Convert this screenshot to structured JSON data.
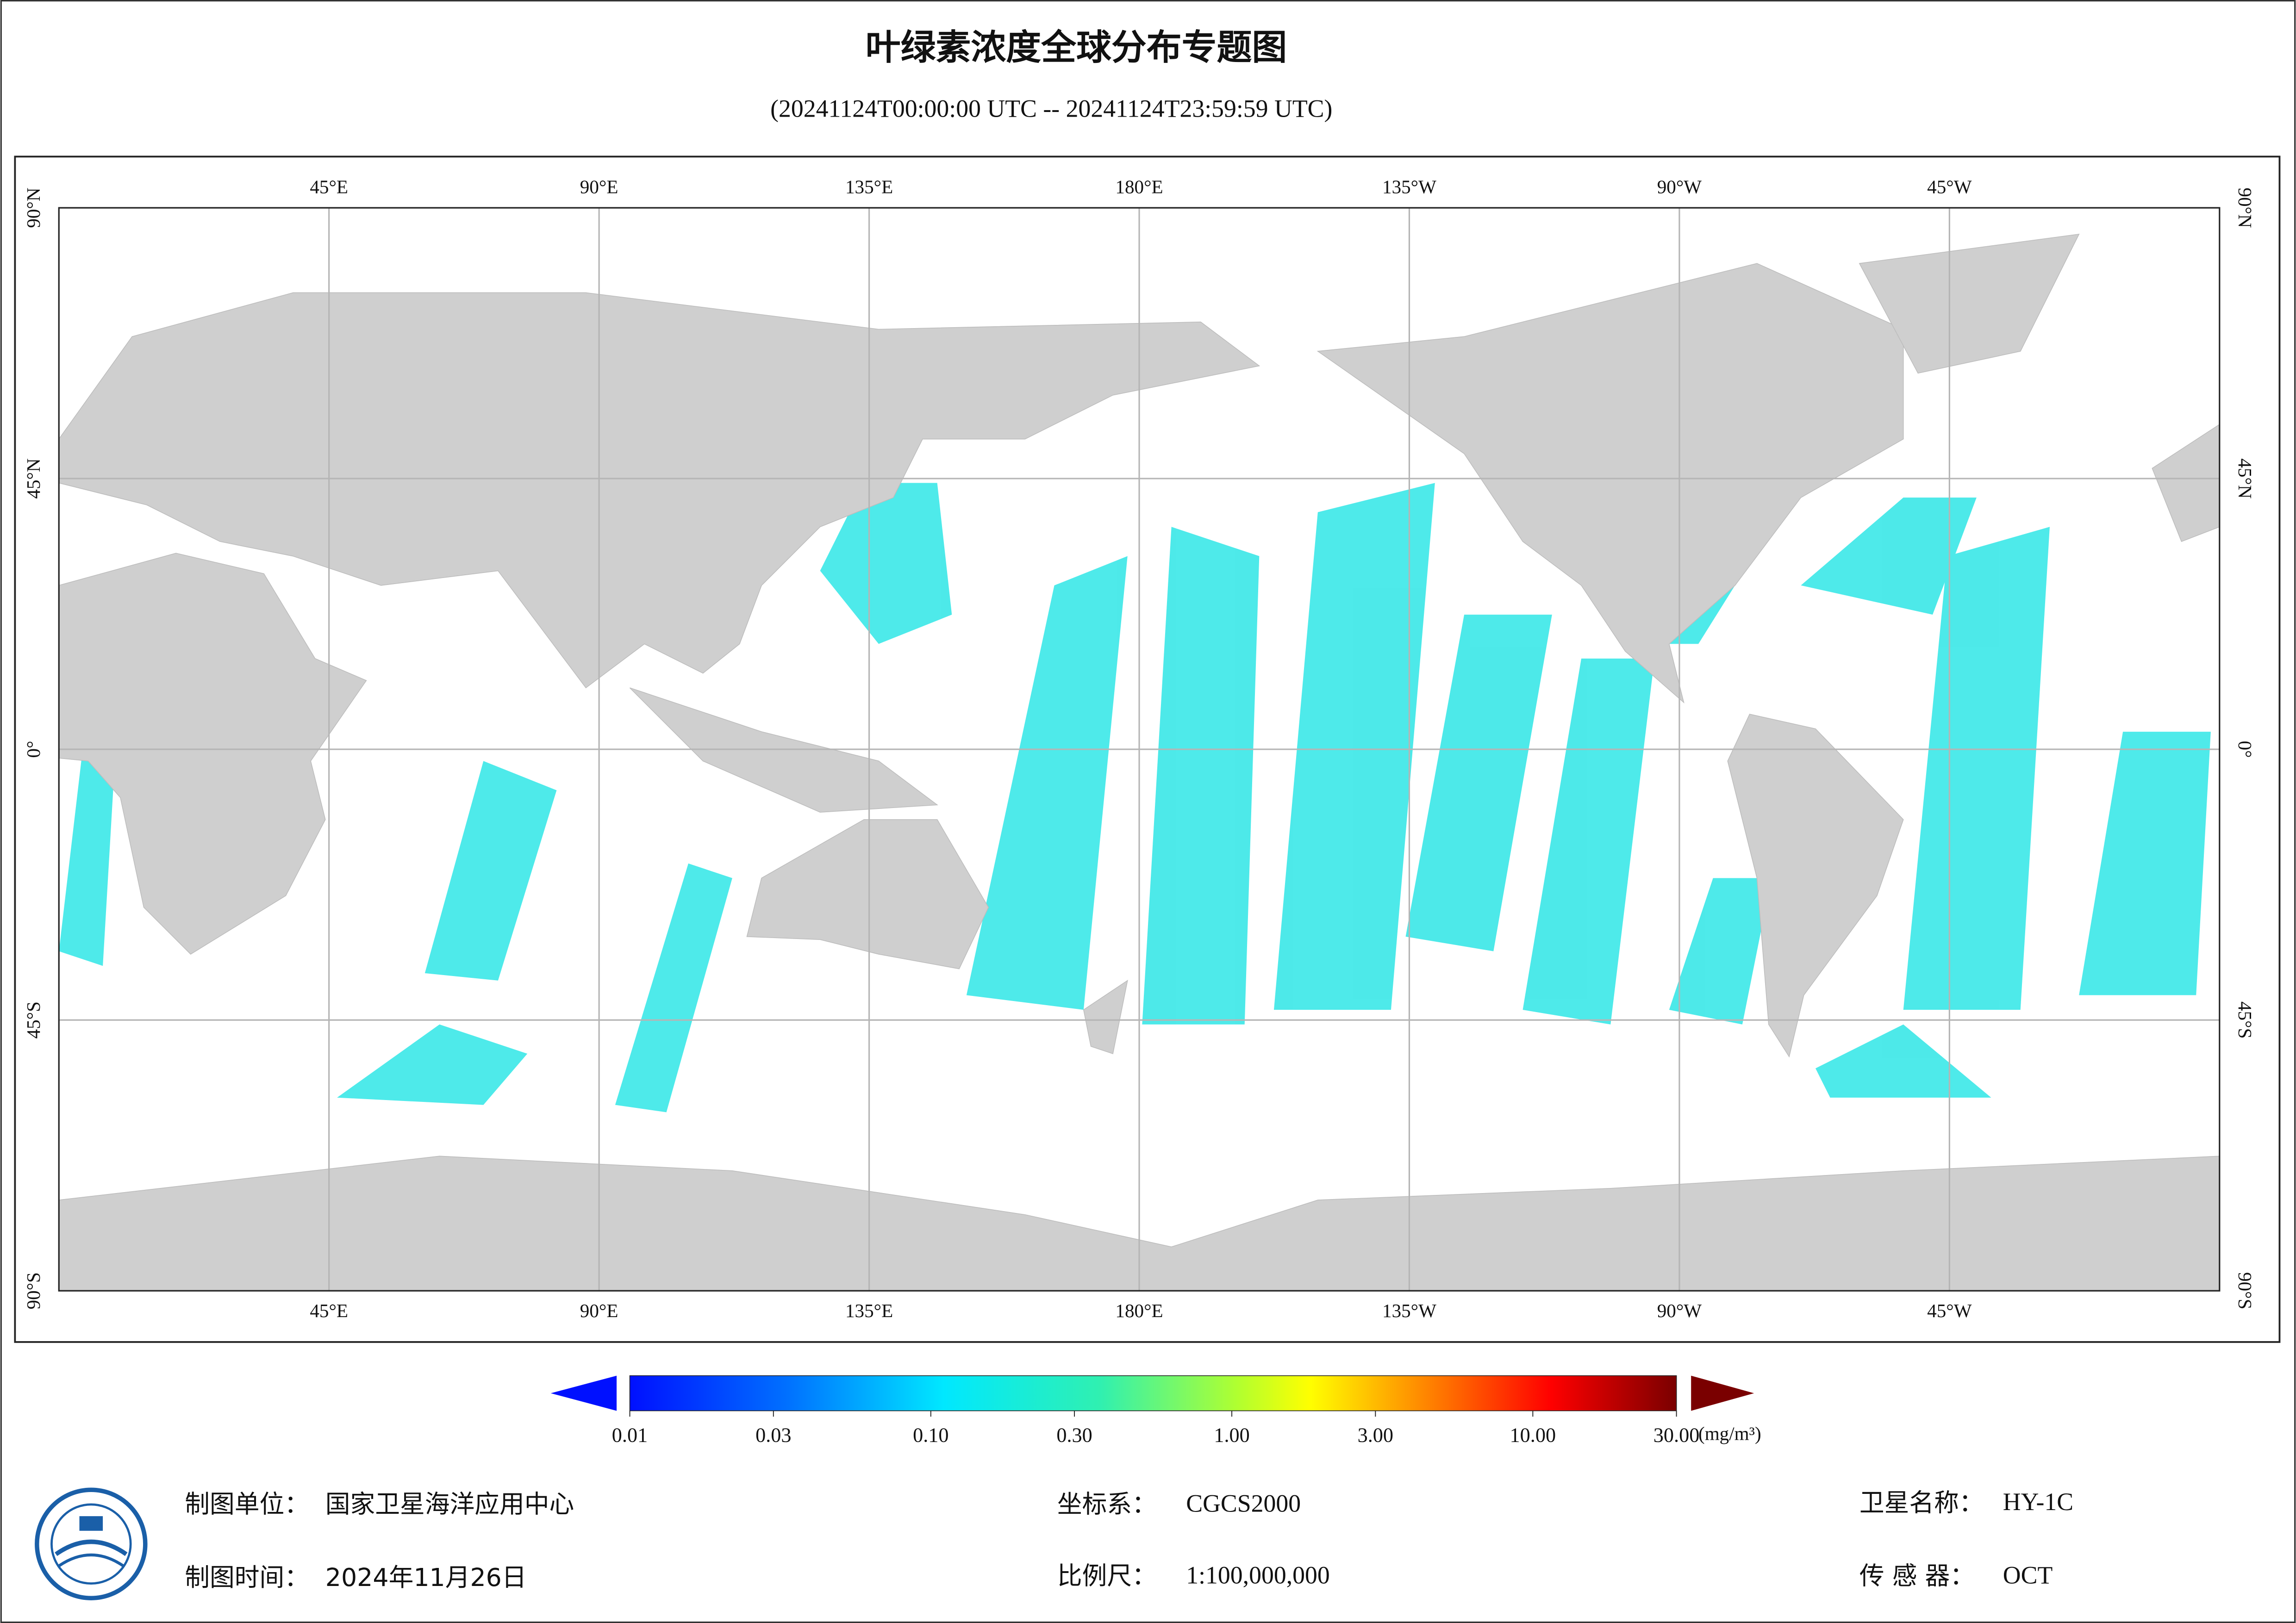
{
  "header": {
    "title": "叶绿素浓度全球分布专题图",
    "subtitle": "(20241124T00:00:00 UTC -- 20241124T23:59:59 UTC)"
  },
  "map": {
    "longitudes": [
      {
        "value": 45,
        "label": "45°E"
      },
      {
        "value": 90,
        "label": "90°E"
      },
      {
        "value": 135,
        "label": "135°E"
      },
      {
        "value": 180,
        "label": "180°E"
      },
      {
        "value": 225,
        "label": "135°W"
      },
      {
        "value": 270,
        "label": "90°W"
      },
      {
        "value": 315,
        "label": "45°W"
      }
    ],
    "latitudes": [
      {
        "value": 90,
        "label": "90°N"
      },
      {
        "value": 45,
        "label": "45°N"
      },
      {
        "value": 0,
        "label": "0°"
      },
      {
        "value": -45,
        "label": "45°S"
      },
      {
        "value": -90,
        "label": "90°S"
      }
    ],
    "grid": true
  },
  "colorbar": {
    "log_scale": true,
    "unit": "(mg/m³)",
    "ticks": [
      {
        "value": 0.01,
        "label": "0.01"
      },
      {
        "value": 0.03,
        "label": "0.03"
      },
      {
        "value": 0.1,
        "label": "0.10"
      },
      {
        "value": 0.3,
        "label": "0.30"
      },
      {
        "value": 1,
        "label": "1.00"
      },
      {
        "value": 3,
        "label": "3.00"
      },
      {
        "value": 10,
        "label": "10.00"
      },
      {
        "value": 30,
        "label": "30.00"
      }
    ]
  },
  "footer": {
    "unit_label": "制图单位：",
    "unit": "国家卫星海洋应用中心",
    "time_label": "制图时间：",
    "time": "2024年11月26日",
    "crs_label": "坐标系：",
    "crs": "CGCS2000",
    "scale_label": "比例尺：",
    "scale": "1:100,000,000",
    "satellite_label": "卫星名称：",
    "satellite": "HY-1C",
    "sensor_label": "传 感 器：",
    "sensor": "OCT"
  }
}
